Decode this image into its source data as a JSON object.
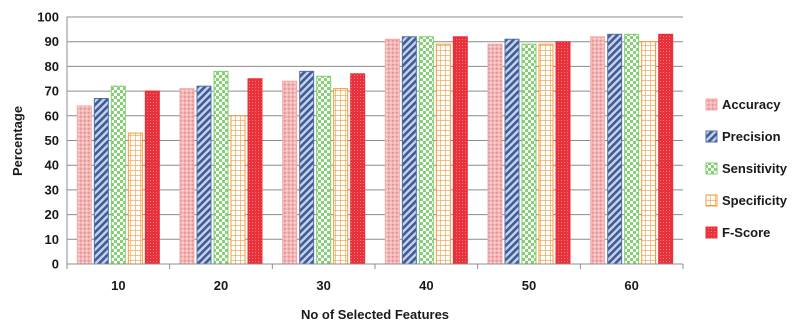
{
  "chart_data": {
    "type": "bar",
    "title": "",
    "xlabel": "No of Selected Features",
    "ylabel": "Percentage",
    "categories": [
      "10",
      "20",
      "30",
      "40",
      "50",
      "60"
    ],
    "ylim": [
      0,
      100
    ],
    "yticks": [
      0,
      10,
      20,
      30,
      40,
      50,
      60,
      70,
      80,
      90,
      100
    ],
    "grid": true,
    "legend_position": "right",
    "series": [
      {
        "name": "Accuracy",
        "values": [
          64,
          71,
          74,
          91,
          89,
          92
        ],
        "color": "#f2aaaa",
        "pattern": "stipple"
      },
      {
        "name": "Precision",
        "values": [
          67,
          72,
          78,
          92,
          91,
          93
        ],
        "color": "#4f6fa8",
        "pattern": "diagonal"
      },
      {
        "name": "Sensitivity",
        "values": [
          72,
          78,
          76,
          92,
          89,
          93
        ],
        "color": "#7fcf6e",
        "pattern": "checker"
      },
      {
        "name": "Specificity",
        "values": [
          53,
          60,
          71,
          89,
          89,
          90
        ],
        "color": "#f59a3c",
        "pattern": "grid"
      },
      {
        "name": "F-Score",
        "values": [
          70,
          75,
          77,
          92,
          90,
          93
        ],
        "color": "#e8313a",
        "pattern": "dots"
      }
    ]
  }
}
